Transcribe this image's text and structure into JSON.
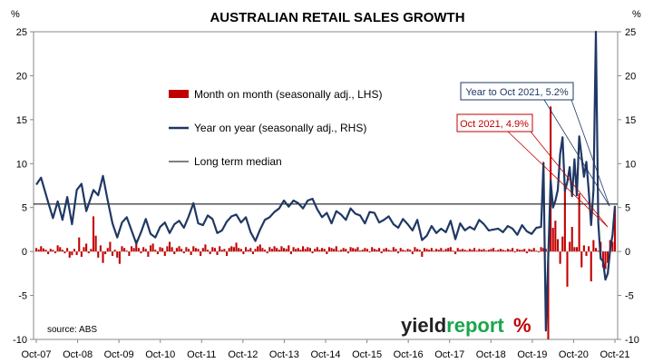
{
  "chart_data": {
    "type": "bar+line",
    "title": "AUSTRALIAN RETAIL SALES GROWTH",
    "left_unit": "%",
    "right_unit": "%",
    "ylim": [
      -10,
      25
    ],
    "y_ticks": [
      -10,
      -5,
      0,
      5,
      10,
      15,
      20,
      25
    ],
    "x_tick_labels": [
      "Oct-07",
      "Oct-08",
      "Oct-09",
      "Oct-10",
      "Oct-11",
      "Oct-12",
      "Oct-13",
      "Oct-14",
      "Oct-15",
      "Oct-16",
      "Oct-17",
      "Oct-18",
      "Oct-19",
      "Oct-20",
      "Oct-21"
    ],
    "median": 5.4,
    "legend": {
      "mom": "Month on month (seasonally adj., LHS)",
      "yoy": "Year on year (seasonally adj., RHS)",
      "median": "Long term median"
    },
    "annotations": {
      "yoy_label": "Year to Oct 2021, 5.2%",
      "mom_label": "Oct 2021, 4.9%",
      "yoy_last": 5.2,
      "mom_last": 4.9
    },
    "source": "source: ABS",
    "colors": {
      "bars": "#c00000",
      "line": "#1f3864",
      "median": "#000000"
    },
    "yoy_key_points": [
      [
        0,
        7.6
      ],
      [
        2,
        8.4
      ],
      [
        5,
        5.6
      ],
      [
        7,
        3.8
      ],
      [
        9,
        5.7
      ],
      [
        11,
        3.6
      ],
      [
        13,
        6.2
      ],
      [
        15,
        3.1
      ],
      [
        17,
        7.0
      ],
      [
        19,
        7.7
      ],
      [
        21,
        4.6
      ],
      [
        24,
        7.0
      ],
      [
        26,
        6.4
      ],
      [
        28,
        8.6
      ],
      [
        30,
        5.8
      ],
      [
        32,
        3.2
      ],
      [
        34,
        1.6
      ],
      [
        36,
        3.3
      ],
      [
        38,
        3.9
      ],
      [
        40,
        2.4
      ],
      [
        42,
        0.9
      ],
      [
        44,
        2.2
      ],
      [
        46,
        3.7
      ],
      [
        48,
        2.0
      ],
      [
        50,
        1.6
      ],
      [
        52,
        2.8
      ],
      [
        54,
        3.3
      ],
      [
        56,
        2.1
      ],
      [
        58,
        3.1
      ],
      [
        60,
        3.5
      ],
      [
        62,
        2.7
      ],
      [
        64,
        4.0
      ],
      [
        66,
        5.5
      ],
      [
        68,
        3.2
      ],
      [
        70,
        3.0
      ],
      [
        72,
        4.1
      ],
      [
        74,
        3.7
      ],
      [
        76,
        2.1
      ],
      [
        78,
        2.4
      ],
      [
        80,
        3.4
      ],
      [
        82,
        4.0
      ],
      [
        84,
        4.2
      ],
      [
        86,
        3.3
      ],
      [
        88,
        3.9
      ],
      [
        90,
        2.2
      ],
      [
        92,
        1.2
      ],
      [
        94,
        2.5
      ],
      [
        96,
        3.6
      ],
      [
        98,
        3.9
      ],
      [
        100,
        4.5
      ],
      [
        102,
        4.9
      ],
      [
        104,
        5.8
      ],
      [
        106,
        5.1
      ],
      [
        108,
        5.8
      ],
      [
        110,
        5.5
      ],
      [
        112,
        4.9
      ],
      [
        114,
        5.8
      ],
      [
        116,
        6.0
      ],
      [
        118,
        4.8
      ],
      [
        120,
        3.9
      ],
      [
        122,
        4.4
      ],
      [
        124,
        3.2
      ],
      [
        126,
        4.6
      ],
      [
        128,
        4.2
      ],
      [
        130,
        3.6
      ],
      [
        132,
        4.9
      ],
      [
        134,
        4.3
      ],
      [
        136,
        4.1
      ],
      [
        138,
        3.2
      ],
      [
        140,
        4.5
      ],
      [
        142,
        4.4
      ],
      [
        144,
        3.3
      ],
      [
        146,
        3.6
      ],
      [
        148,
        4.0
      ],
      [
        150,
        3.1
      ],
      [
        152,
        2.7
      ],
      [
        154,
        3.7
      ],
      [
        156,
        3.1
      ],
      [
        158,
        2.4
      ],
      [
        160,
        3.6
      ],
      [
        162,
        1.3
      ],
      [
        164,
        1.8
      ],
      [
        166,
        2.9
      ],
      [
        168,
        2.1
      ],
      [
        170,
        2.6
      ],
      [
        172,
        2.2
      ],
      [
        174,
        3.5
      ],
      [
        176,
        1.4
      ],
      [
        178,
        3.2
      ],
      [
        180,
        2.4
      ],
      [
        182,
        2.8
      ],
      [
        184,
        2.5
      ],
      [
        186,
        3.6
      ],
      [
        188,
        3.1
      ],
      [
        190,
        2.4
      ],
      [
        192,
        2.5
      ],
      [
        194,
        2.6
      ],
      [
        196,
        2.2
      ],
      [
        198,
        2.9
      ],
      [
        200,
        2.6
      ],
      [
        202,
        1.9
      ],
      [
        204,
        3.0
      ],
      [
        206,
        2.3
      ],
      [
        208,
        2.0
      ],
      [
        210,
        2.7
      ],
      [
        212,
        2.8
      ],
      [
        213,
        10.1
      ],
      [
        214,
        -9.0
      ],
      [
        215,
        -0.6
      ],
      [
        216,
        8.1
      ],
      [
        217,
        5.0
      ],
      [
        218,
        5.8
      ],
      [
        219,
        7.0
      ],
      [
        220,
        11.1
      ],
      [
        221,
        13.0
      ],
      [
        222,
        6.9
      ],
      [
        223,
        7.9
      ],
      [
        224,
        9.6
      ],
      [
        225,
        6.3
      ],
      [
        226,
        10.5
      ],
      [
        227,
        6.4
      ],
      [
        228,
        13.1
      ],
      [
        229,
        10.8
      ],
      [
        230,
        8.5
      ],
      [
        231,
        10.2
      ],
      [
        232,
        6.9
      ],
      [
        233,
        3.0
      ],
      [
        234,
        7.0
      ],
      [
        235,
        25.4
      ],
      [
        236,
        3.3
      ],
      [
        237,
        -0.8
      ],
      [
        238,
        -1.1
      ],
      [
        239,
        -3.2
      ],
      [
        240,
        -2.5
      ],
      [
        241,
        0.2
      ],
      [
        242,
        1.9
      ],
      [
        243,
        5.2
      ]
    ],
    "mom_key_points": [
      [
        0,
        0.4
      ],
      [
        2,
        0.6
      ],
      [
        4,
        0.2
      ],
      [
        5,
        -0.3
      ],
      [
        6,
        0.3
      ],
      [
        8,
        -0.2
      ],
      [
        9,
        0.7
      ],
      [
        10,
        0.5
      ],
      [
        11,
        0.2
      ],
      [
        12,
        -0.2
      ],
      [
        13,
        0.4
      ],
      [
        14,
        -0.7
      ],
      [
        16,
        0.3
      ],
      [
        17,
        -0.4
      ],
      [
        18,
        1.6
      ],
      [
        19,
        -0.6
      ],
      [
        20,
        0.5
      ],
      [
        21,
        0.9
      ],
      [
        22,
        -0.2
      ],
      [
        23,
        0.3
      ],
      [
        24,
        4.0
      ],
      [
        25,
        1.8
      ],
      [
        26,
        -0.7
      ],
      [
        27,
        0.7
      ],
      [
        28,
        -1.3
      ],
      [
        29,
        -0.3
      ],
      [
        30,
        0.4
      ],
      [
        31,
        1.1
      ],
      [
        32,
        -0.5
      ],
      [
        33,
        0.2
      ],
      [
        34,
        -0.7
      ],
      [
        35,
        -1.4
      ],
      [
        36,
        0.6
      ],
      [
        37,
        0.4
      ],
      [
        38,
        0.1
      ],
      [
        39,
        -0.5
      ],
      [
        40,
        0.6
      ],
      [
        41,
        0.4
      ],
      [
        42,
        1.3
      ],
      [
        43,
        0.4
      ],
      [
        44,
        -0.2
      ],
      [
        45,
        0.5
      ],
      [
        46,
        0.3
      ],
      [
        47,
        -0.6
      ],
      [
        48,
        0.7
      ],
      [
        49,
        0.9
      ],
      [
        50,
        0.2
      ],
      [
        51,
        -0.3
      ],
      [
        52,
        0.5
      ],
      [
        53,
        0.4
      ],
      [
        54,
        -0.5
      ],
      [
        55,
        0.6
      ],
      [
        56,
        1.1
      ],
      [
        57,
        0.5
      ],
      [
        58,
        -0.3
      ],
      [
        59,
        0.4
      ],
      [
        60,
        0.6
      ],
      [
        61,
        0.3
      ],
      [
        62,
        -0.2
      ],
      [
        63,
        0.5
      ],
      [
        64,
        0.3
      ],
      [
        65,
        -0.4
      ],
      [
        66,
        0.6
      ],
      [
        67,
        0.4
      ],
      [
        68,
        0.3
      ],
      [
        69,
        -0.5
      ],
      [
        70,
        0.4
      ],
      [
        71,
        0.8
      ],
      [
        72,
        0.2
      ],
      [
        73,
        -0.3
      ],
      [
        74,
        0.5
      ],
      [
        75,
        0.4
      ],
      [
        76,
        -0.4
      ],
      [
        77,
        0.6
      ],
      [
        78,
        0.2
      ],
      [
        79,
        0.3
      ],
      [
        80,
        -0.5
      ],
      [
        81,
        0.4
      ],
      [
        82,
        0.6
      ],
      [
        83,
        0.5
      ],
      [
        84,
        1.0
      ],
      [
        85,
        0.4
      ],
      [
        86,
        0.3
      ],
      [
        87,
        -0.3
      ],
      [
        88,
        0.5
      ],
      [
        89,
        0.2
      ],
      [
        90,
        0.4
      ],
      [
        91,
        -0.3
      ],
      [
        92,
        0.3
      ],
      [
        93,
        0.6
      ],
      [
        94,
        0.8
      ],
      [
        95,
        0.4
      ],
      [
        96,
        0.2
      ],
      [
        97,
        -0.2
      ],
      [
        98,
        0.5
      ],
      [
        99,
        0.3
      ],
      [
        100,
        0.6
      ],
      [
        101,
        0.4
      ],
      [
        102,
        0.2
      ],
      [
        103,
        0.6
      ],
      [
        104,
        0.4
      ],
      [
        105,
        0.3
      ],
      [
        106,
        0.7
      ],
      [
        107,
        -0.3
      ],
      [
        108,
        0.5
      ],
      [
        109,
        0.3
      ],
      [
        110,
        0.4
      ],
      [
        111,
        0.2
      ],
      [
        112,
        0.6
      ],
      [
        113,
        0.3
      ],
      [
        114,
        0.5
      ],
      [
        115,
        0.4
      ],
      [
        116,
        -0.2
      ],
      [
        117,
        0.3
      ],
      [
        118,
        0.5
      ],
      [
        119,
        0.2
      ],
      [
        120,
        0.4
      ],
      [
        121,
        0.3
      ],
      [
        122,
        -0.3
      ],
      [
        123,
        0.5
      ],
      [
        124,
        0.4
      ],
      [
        125,
        0.3
      ],
      [
        126,
        0.6
      ],
      [
        127,
        0.1
      ],
      [
        128,
        0.2
      ],
      [
        129,
        0.4
      ],
      [
        130,
        0.3
      ],
      [
        131,
        -0.2
      ],
      [
        132,
        0.5
      ],
      [
        133,
        0.4
      ],
      [
        134,
        0.3
      ],
      [
        135,
        0.5
      ],
      [
        136,
        0.1
      ],
      [
        137,
        0.2
      ],
      [
        138,
        0.4
      ],
      [
        139,
        0.3
      ],
      [
        140,
        -0.1
      ],
      [
        141,
        0.5
      ],
      [
        142,
        0.3
      ],
      [
        143,
        0.2
      ],
      [
        144,
        0.4
      ],
      [
        145,
        -0.2
      ],
      [
        146,
        0.3
      ],
      [
        147,
        0.4
      ],
      [
        148,
        0.2
      ],
      [
        149,
        0.1
      ],
      [
        150,
        0.5
      ],
      [
        151,
        0.3
      ],
      [
        152,
        -0.2
      ],
      [
        153,
        0.4
      ],
      [
        154,
        0.2
      ],
      [
        155,
        0.1
      ],
      [
        156,
        0.3
      ],
      [
        157,
        0.2
      ],
      [
        158,
        -0.3
      ],
      [
        159,
        0.5
      ],
      [
        160,
        0.3
      ],
      [
        161,
        0.2
      ],
      [
        162,
        -0.6
      ],
      [
        163,
        0.4
      ],
      [
        164,
        0.3
      ],
      [
        165,
        0.2
      ],
      [
        166,
        0.4
      ],
      [
        167,
        0.1
      ],
      [
        168,
        0.3
      ],
      [
        169,
        0.2
      ],
      [
        170,
        0.4
      ],
      [
        171,
        0.1
      ],
      [
        172,
        0.3
      ],
      [
        173,
        0.4
      ],
      [
        174,
        0.5
      ],
      [
        175,
        0.1
      ],
      [
        176,
        -0.3
      ],
      [
        177,
        0.4
      ],
      [
        178,
        0.2
      ],
      [
        179,
        0.3
      ],
      [
        180,
        0.2
      ],
      [
        181,
        0.1
      ],
      [
        182,
        0.3
      ],
      [
        183,
        0.2
      ],
      [
        184,
        0.4
      ],
      [
        185,
        0.1
      ],
      [
        186,
        0.3
      ],
      [
        187,
        0.2
      ],
      [
        188,
        0.3
      ],
      [
        189,
        0.1
      ],
      [
        190,
        0.2
      ],
      [
        191,
        0.3
      ],
      [
        192,
        0.4
      ],
      [
        193,
        0.1
      ],
      [
        194,
        0.2
      ],
      [
        195,
        0.3
      ],
      [
        196,
        0.2
      ],
      [
        197,
        0.1
      ],
      [
        198,
        0.3
      ],
      [
        199,
        0.2
      ],
      [
        200,
        0.4
      ],
      [
        201,
        -0.1
      ],
      [
        202,
        0.3
      ],
      [
        203,
        0.2
      ],
      [
        204,
        0.2
      ],
      [
        205,
        0.3
      ],
      [
        206,
        -0.2
      ],
      [
        207,
        0.3
      ],
      [
        208,
        0.2
      ],
      [
        209,
        0.4
      ],
      [
        210,
        0.1
      ],
      [
        211,
        -0.1
      ],
      [
        212,
        0.5
      ],
      [
        213,
        0.4
      ],
      [
        214,
        0.3
      ],
      [
        215,
        -10.0
      ],
      [
        216,
        16.5
      ],
      [
        217,
        2.7
      ],
      [
        218,
        3.5
      ],
      [
        219,
        1.4
      ],
      [
        220,
        -1.4
      ],
      [
        221,
        1.7
      ],
      [
        222,
        7.1
      ],
      [
        223,
        -4.0
      ],
      [
        224,
        1.1
      ],
      [
        225,
        2.8
      ],
      [
        226,
        0.5
      ],
      [
        227,
        0.5
      ],
      [
        228,
        6.6
      ],
      [
        229,
        -1.8
      ],
      [
        230,
        0.7
      ],
      [
        231,
        -0.5
      ],
      [
        232,
        0.6
      ],
      [
        233,
        -3.4
      ],
      [
        234,
        1.3
      ],
      [
        235,
        0.4
      ],
      [
        236,
        0.1
      ],
      [
        237,
        1.1
      ],
      [
        238,
        -1.8
      ],
      [
        239,
        -2.0
      ],
      [
        240,
        -1.3
      ],
      [
        241,
        1.3
      ],
      [
        242,
        1.1
      ],
      [
        243,
        4.9
      ]
    ]
  },
  "brand": {
    "name_a": "yield",
    "name_b": "report",
    "symbol": "%"
  }
}
